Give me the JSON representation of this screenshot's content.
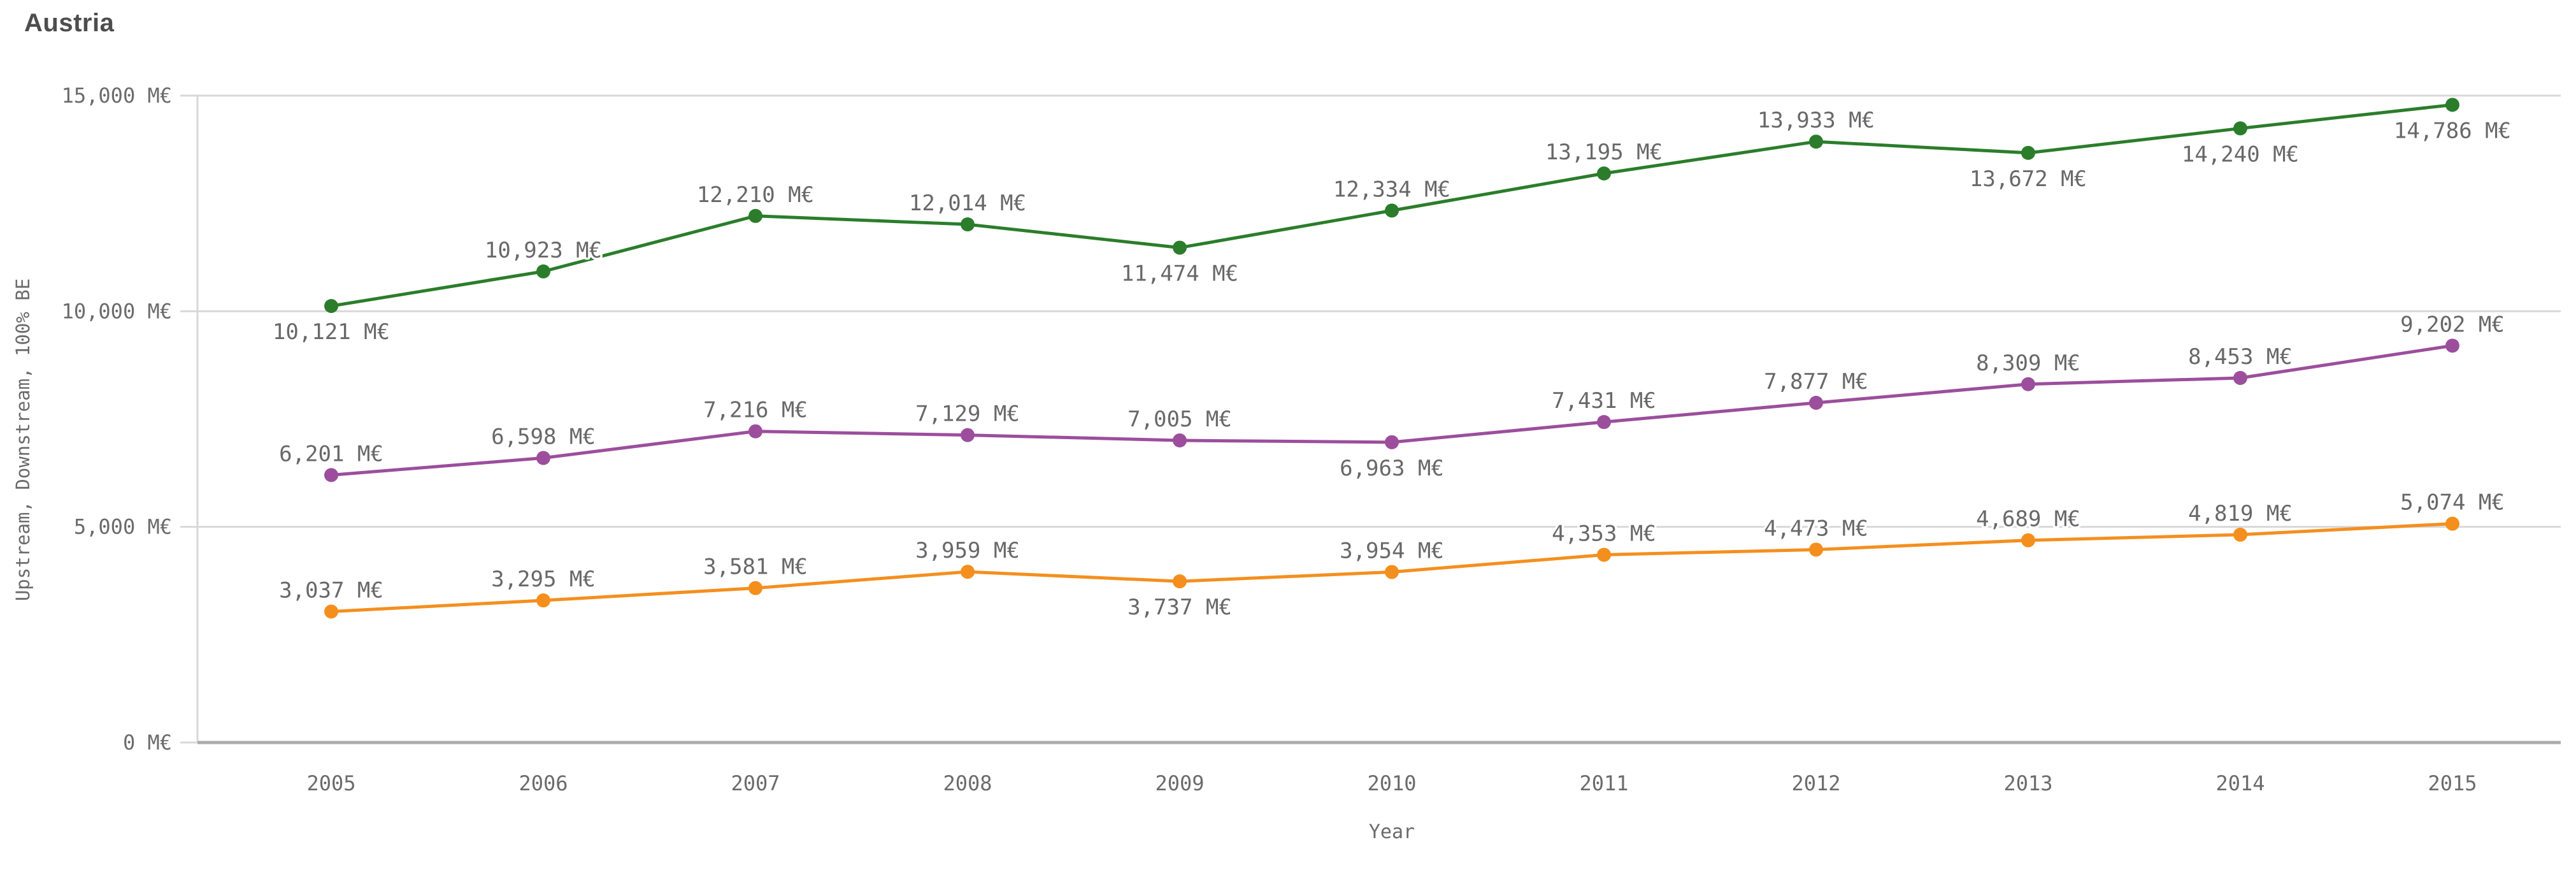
{
  "header": {
    "title": "Austria"
  },
  "chart_data": {
    "type": "line",
    "x": [
      2005,
      2006,
      2007,
      2008,
      2009,
      2010,
      2011,
      2012,
      2013,
      2014,
      2015
    ],
    "xlabel": "Year",
    "ylabel": "Upstream, Downstream, 100% BE",
    "ylim": [
      0,
      15000
    ],
    "grid": true,
    "legend_position": "none",
    "y_ticks": [
      {
        "value": 0,
        "label": "0 M€"
      },
      {
        "value": 5000,
        "label": "5,000 M€"
      },
      {
        "value": 10000,
        "label": "10,000 M€"
      },
      {
        "value": 15000,
        "label": "15,000 M€"
      }
    ],
    "series": [
      {
        "name": "green-series",
        "color": "#2b7d2b",
        "values": [
          10121,
          10923,
          12210,
          12014,
          11474,
          12334,
          13195,
          13933,
          13672,
          14240,
          14786
        ],
        "labels": [
          "10,121 M€",
          "10,923 M€",
          "12,210 M€",
          "12,014 M€",
          "11,474 M€",
          "12,334 M€",
          "13,195 M€",
          "13,933 M€",
          "13,672 M€",
          "14,240 M€",
          "14,786 M€"
        ],
        "label_position": [
          "below",
          "above",
          "above",
          "above",
          "below",
          "above",
          "above",
          "above",
          "below",
          "below",
          "below"
        ]
      },
      {
        "name": "purple-series",
        "color": "#9c4e9c",
        "values": [
          6201,
          6598,
          7216,
          7129,
          7005,
          6963,
          7431,
          7877,
          8309,
          8453,
          9202
        ],
        "labels": [
          "6,201 M€",
          "6,598 M€",
          "7,216 M€",
          "7,129 M€",
          "7,005 M€",
          "6,963 M€",
          "7,431 M€",
          "7,877 M€",
          "8,309 M€",
          "8,453 M€",
          "9,202 M€"
        ],
        "label_position": [
          "above",
          "above",
          "above",
          "above",
          "above",
          "below",
          "above",
          "above",
          "above",
          "above",
          "above"
        ]
      },
      {
        "name": "orange-series",
        "color": "#f48f1e",
        "values": [
          3037,
          3295,
          3581,
          3959,
          3737,
          3954,
          4353,
          4473,
          4689,
          4819,
          5074
        ],
        "labels": [
          "3,037 M€",
          "3,295 M€",
          "3,581 M€",
          "3,959 M€",
          "3,737 M€",
          "3,954 M€",
          "4,353 M€",
          "4,473 M€",
          "4,689 M€",
          "4,819 M€",
          "5,074 M€"
        ],
        "label_position": [
          "above",
          "above",
          "above",
          "above",
          "below",
          "above",
          "above",
          "above",
          "above",
          "above",
          "above"
        ]
      }
    ],
    "colors": {
      "grid_line": "#d8d8d8",
      "axis_base_line": "#ababab",
      "tick_text": "#6b6b6b",
      "label_text": "#686868"
    }
  }
}
